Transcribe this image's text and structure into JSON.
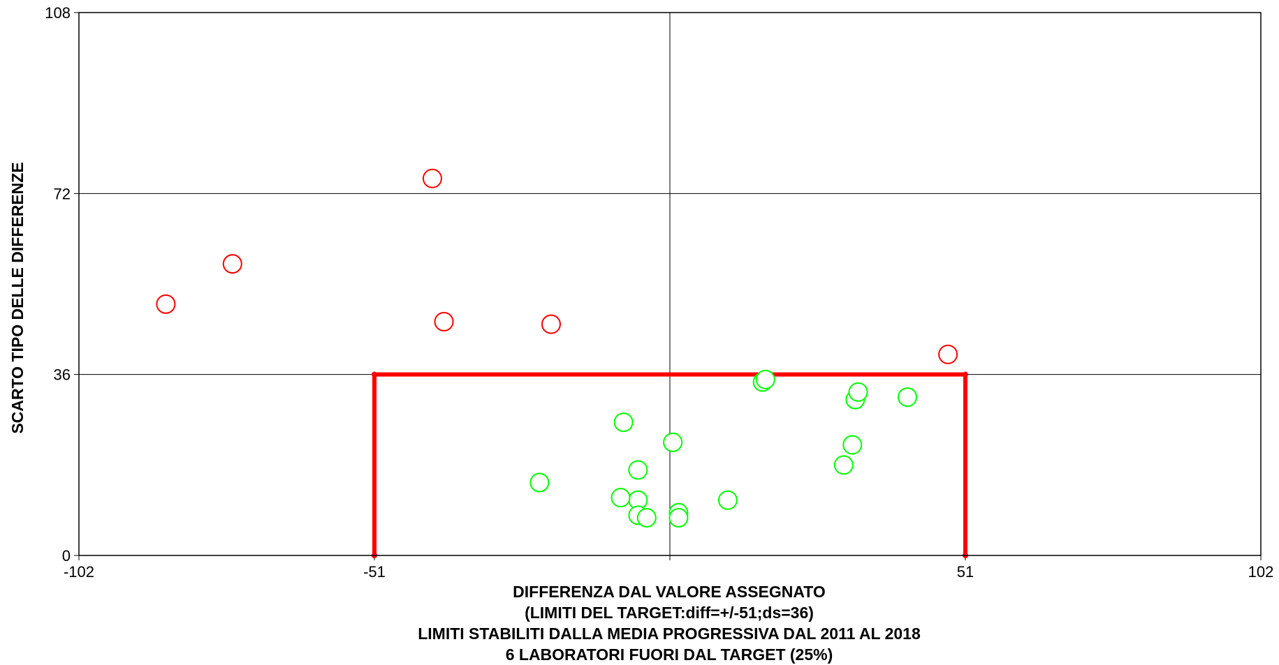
{
  "chart_data": {
    "type": "scatter",
    "title": "",
    "xlabel_lines": [
      "DIFFERENZA DAL VALORE ASSEGNATO",
      "(LIMITI DEL TARGET:diff=+/-51;ds=36)",
      "LIMITI STABILITI DALLA MEDIA PROGRESSIVA DAL 2011 AL 2018",
      "6 LABORATORI FUORI DAL TARGET (25%)"
    ],
    "ylabel": "SCARTO TIPO DELLE DIFFERENZE",
    "xlim": [
      -102,
      102
    ],
    "ylim": [
      0,
      108
    ],
    "xticks": [
      -102,
      -51,
      0,
      51,
      102
    ],
    "xtick_labels": [
      "-102",
      "-51",
      "",
      "51",
      "102"
    ],
    "yticks": [
      0,
      36,
      72,
      108
    ],
    "ytick_labels": [
      "0",
      "36",
      "72",
      "108"
    ],
    "grid": true,
    "target": {
      "x_limit": 51,
      "ds_limit": 36,
      "color": "#ff0000"
    },
    "series": [
      {
        "color": "#ff0000",
        "x": [
          -87,
          -75.5,
          -41,
          -39,
          -20.5,
          48
        ],
        "y": [
          50,
          58,
          75,
          46.5,
          46,
          40
        ]
      },
      {
        "color": "#00ff00",
        "x": [
          -22.5,
          -8,
          -5.5,
          -5.5,
          -8.5,
          -5.5,
          -4,
          0.5,
          1.5,
          1.5,
          10,
          16,
          16.5,
          30,
          31.5,
          32,
          32.5,
          41
        ],
        "y": [
          14.5,
          26.5,
          17,
          11,
          11.5,
          8,
          7.5,
          22.5,
          8.5,
          7.5,
          11,
          34.5,
          35,
          18,
          22,
          31,
          32.5,
          31.5
        ]
      }
    ]
  }
}
